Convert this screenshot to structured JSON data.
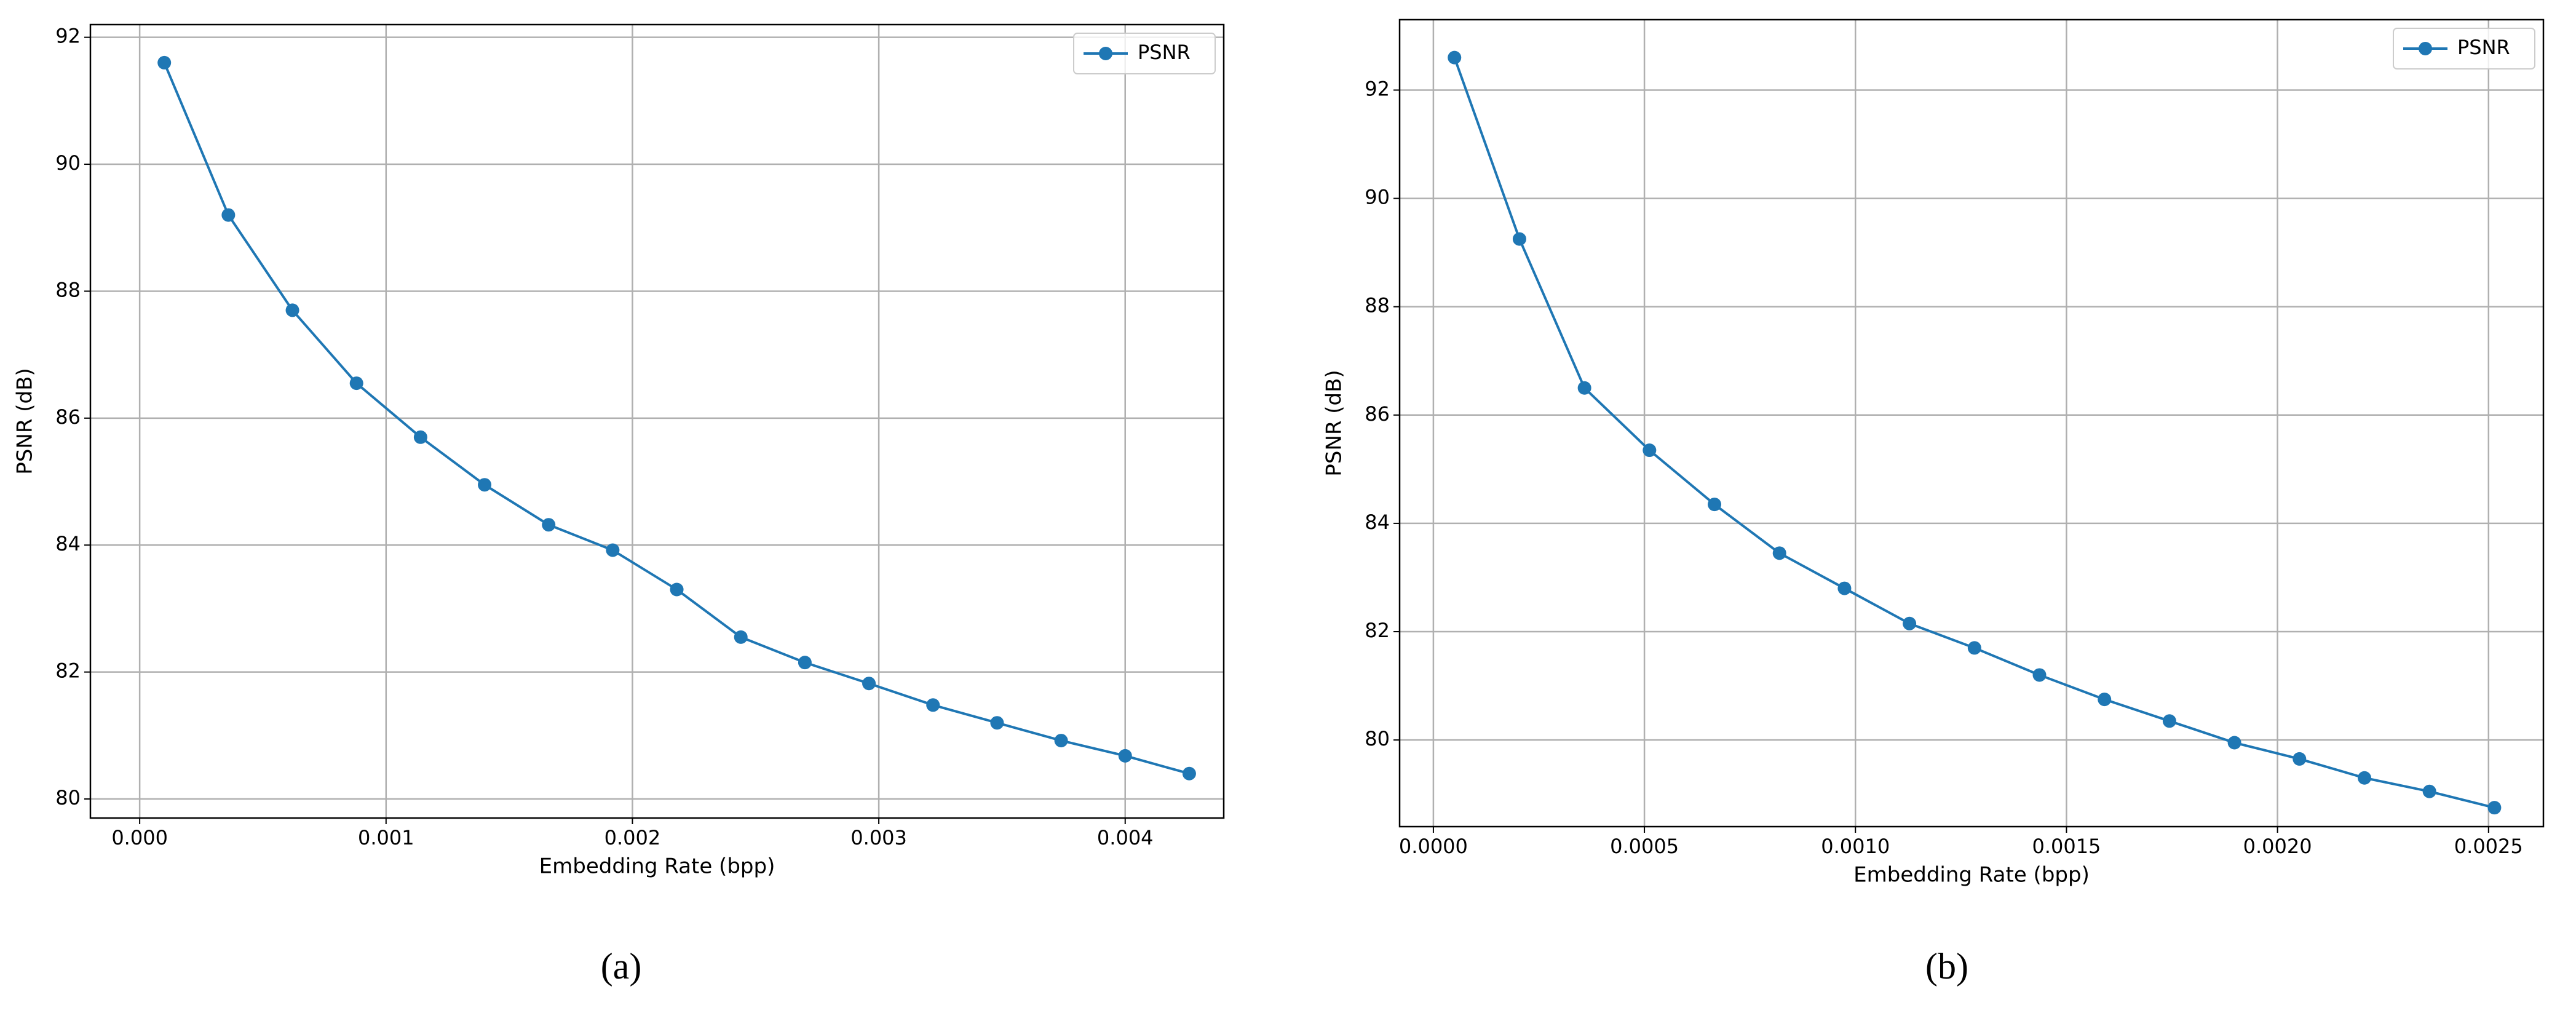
{
  "chart_data": [
    {
      "type": "line",
      "xlabel": "Embedding Rate (bpp)",
      "ylabel": "PSNR (dB)",
      "panel_label": "(a)",
      "grid": true,
      "legend": "upper right",
      "xlim": [
        -0.0002,
        0.0044
      ],
      "xticks": [
        {
          "value": 0,
          "label": "0.000"
        },
        0.001,
        0.002,
        0.003,
        0.004
      ],
      "ylim": [
        79.7,
        92.2
      ],
      "yticks": [
        80,
        82,
        84,
        86,
        88,
        90,
        92
      ],
      "x": [
        0.0001,
        0.00036,
        0.00062,
        0.00088,
        0.00114,
        0.0014,
        0.00166,
        0.00192,
        0.00218,
        0.00244,
        0.0027,
        0.00296,
        0.00322,
        0.00348,
        0.00374,
        0.004,
        0.00426
      ],
      "series": [
        {
          "name": "PSNR",
          "color": "#1f77b4",
          "values": [
            91.6,
            89.2,
            87.7,
            86.55,
            85.7,
            84.95,
            84.32,
            83.92,
            83.3,
            82.55,
            82.15,
            81.82,
            81.48,
            81.2,
            80.92,
            80.68,
            80.4
          ]
        }
      ]
    },
    {
      "type": "line",
      "xlabel": "Embedding Rate (bpp)",
      "ylabel": "PSNR (dB)",
      "panel_label": "(b)",
      "grid": true,
      "legend": "upper right",
      "xlim": [
        -8e-05,
        0.00263
      ],
      "xticks": [
        {
          "value": 0,
          "label": "0.0000"
        },
        0.0005,
        {
          "value": 0.001,
          "label": "0.0010"
        },
        0.0015,
        {
          "value": 0.002,
          "label": "0.0020"
        },
        0.0025
      ],
      "ylim": [
        78.4,
        93.3
      ],
      "yticks": [
        80,
        82,
        84,
        86,
        88,
        90,
        92
      ],
      "x": [
        5e-05,
        0.000204,
        0.000358,
        0.000512,
        0.000666,
        0.00082,
        0.000974,
        0.001128,
        0.001282,
        0.001436,
        0.00159,
        0.001744,
        0.001898,
        0.002052,
        0.002206,
        0.00236,
        0.002514
      ],
      "series": [
        {
          "name": "PSNR",
          "color": "#1f77b4",
          "values": [
            92.6,
            89.25,
            86.5,
            85.35,
            84.35,
            83.45,
            82.8,
            82.15,
            81.7,
            81.2,
            80.75,
            80.35,
            79.95,
            79.65,
            79.3,
            79.05,
            78.75
          ]
        }
      ]
    }
  ]
}
